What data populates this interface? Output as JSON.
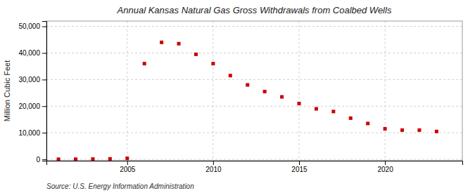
{
  "chart_data": {
    "type": "scatter",
    "title": "Annual Kansas Natural Gas Gross Withdrawals from Coalbed Wells",
    "ylabel": "Million Cubic Feet",
    "source": "Source: U.S. Energy Information Administration",
    "x": [
      2001,
      2002,
      2003,
      2004,
      2005,
      2006,
      2007,
      2008,
      2009,
      2010,
      2011,
      2012,
      2013,
      2014,
      2015,
      2016,
      2017,
      2018,
      2019,
      2020,
      2021,
      2022,
      2023
    ],
    "values": [
      50,
      80,
      120,
      200,
      400,
      36000,
      44000,
      43500,
      39500,
      36000,
      31500,
      28000,
      25500,
      23500,
      21000,
      19000,
      18000,
      15500,
      13500,
      11500,
      11000,
      11000,
      10500
    ],
    "color": "#cc0000",
    "marker": "square",
    "xlim": [
      2000.3,
      2024.5
    ],
    "xticks": [
      2005,
      2010,
      2015,
      2020
    ],
    "ylim": [
      -500,
      52000
    ],
    "yticks": [
      0,
      {
        "value": 10000,
        "label": "10,000"
      },
      {
        "value": 20000,
        "label": "20,000"
      },
      {
        "value": 30000,
        "label": "30,000"
      },
      {
        "value": 40000,
        "label": "40,000"
      },
      {
        "value": 50000,
        "label": "50,000"
      }
    ],
    "grid": true
  }
}
